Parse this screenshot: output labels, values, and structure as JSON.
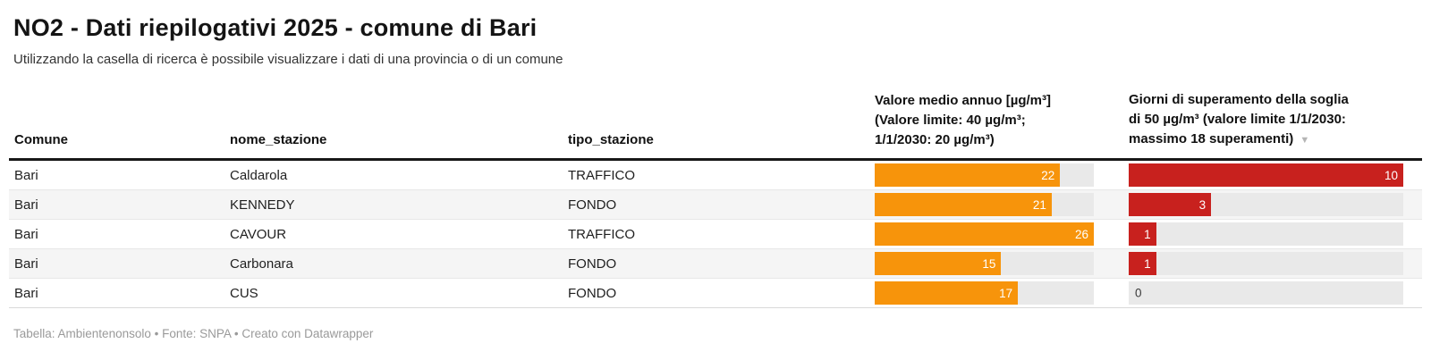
{
  "header": {
    "title": "NO2 - Dati riepilogativi 2025 - comune di Bari",
    "subtitle": "Utilizzando la casella di ricerca è possibile visualizzare i dati di una provincia o di un comune"
  },
  "table": {
    "column_headers": {
      "comune": "Comune",
      "nome_stazione": "nome_stazione",
      "tipo_stazione": "tipo_stazione",
      "valore_lines": [
        "Valore medio annuo [µg/m³]",
        "(Valore limite: 40 µg/m³;",
        "1/1/2030: 20 µg/m³)"
      ],
      "giorni_lines": [
        "Giorni di superamento della soglia",
        "di 50 µg/m³ (valore limite 1/1/2030:",
        "massimo 18 superamenti)"
      ],
      "sort_icon": "▼"
    },
    "colors": {
      "valore_bar": "#F7940B",
      "giorni_bar": "#C8211E",
      "bar_track": "#e9e9e9",
      "row_stripe": "#f5f5f5"
    }
  },
  "chart_data": {
    "type": "table",
    "title": "NO2 - Dati riepilogativi 2025 - comune di Bari",
    "columns": [
      "Comune",
      "nome_stazione",
      "tipo_stazione",
      "Valore medio annuo [µg/m³] (Valore limite: 40 µg/m³; 1/1/2030: 20 µg/m³)",
      "Giorni di superamento della soglia di 50 µg/m³ (valore limite 1/1/2030: massimo 18 superamenti)"
    ],
    "rows": [
      {
        "comune": "Bari",
        "nome_stazione": "Caldarola",
        "tipo_stazione": "TRAFFICO",
        "valore_medio": 22,
        "giorni_superamento": 10
      },
      {
        "comune": "Bari",
        "nome_stazione": "KENNEDY",
        "tipo_stazione": "FONDO",
        "valore_medio": 21,
        "giorni_superamento": 3
      },
      {
        "comune": "Bari",
        "nome_stazione": "CAVOUR",
        "tipo_stazione": "TRAFFICO",
        "valore_medio": 26,
        "giorni_superamento": 1
      },
      {
        "comune": "Bari",
        "nome_stazione": "Carbonara",
        "tipo_stazione": "FONDO",
        "valore_medio": 15,
        "giorni_superamento": 1
      },
      {
        "comune": "Bari",
        "nome_stazione": "CUS",
        "tipo_stazione": "FONDO",
        "valore_medio": 17,
        "giorni_superamento": 0
      }
    ],
    "bar_axis": {
      "valore_medio_max": 26,
      "giorni_superamento_max": 10,
      "sorted_by": "giorni_superamento",
      "sort_direction": "desc"
    }
  },
  "footer": {
    "text": "Tabella: Ambientenonsolo • Fonte: SNPA • Creato con Datawrapper"
  }
}
